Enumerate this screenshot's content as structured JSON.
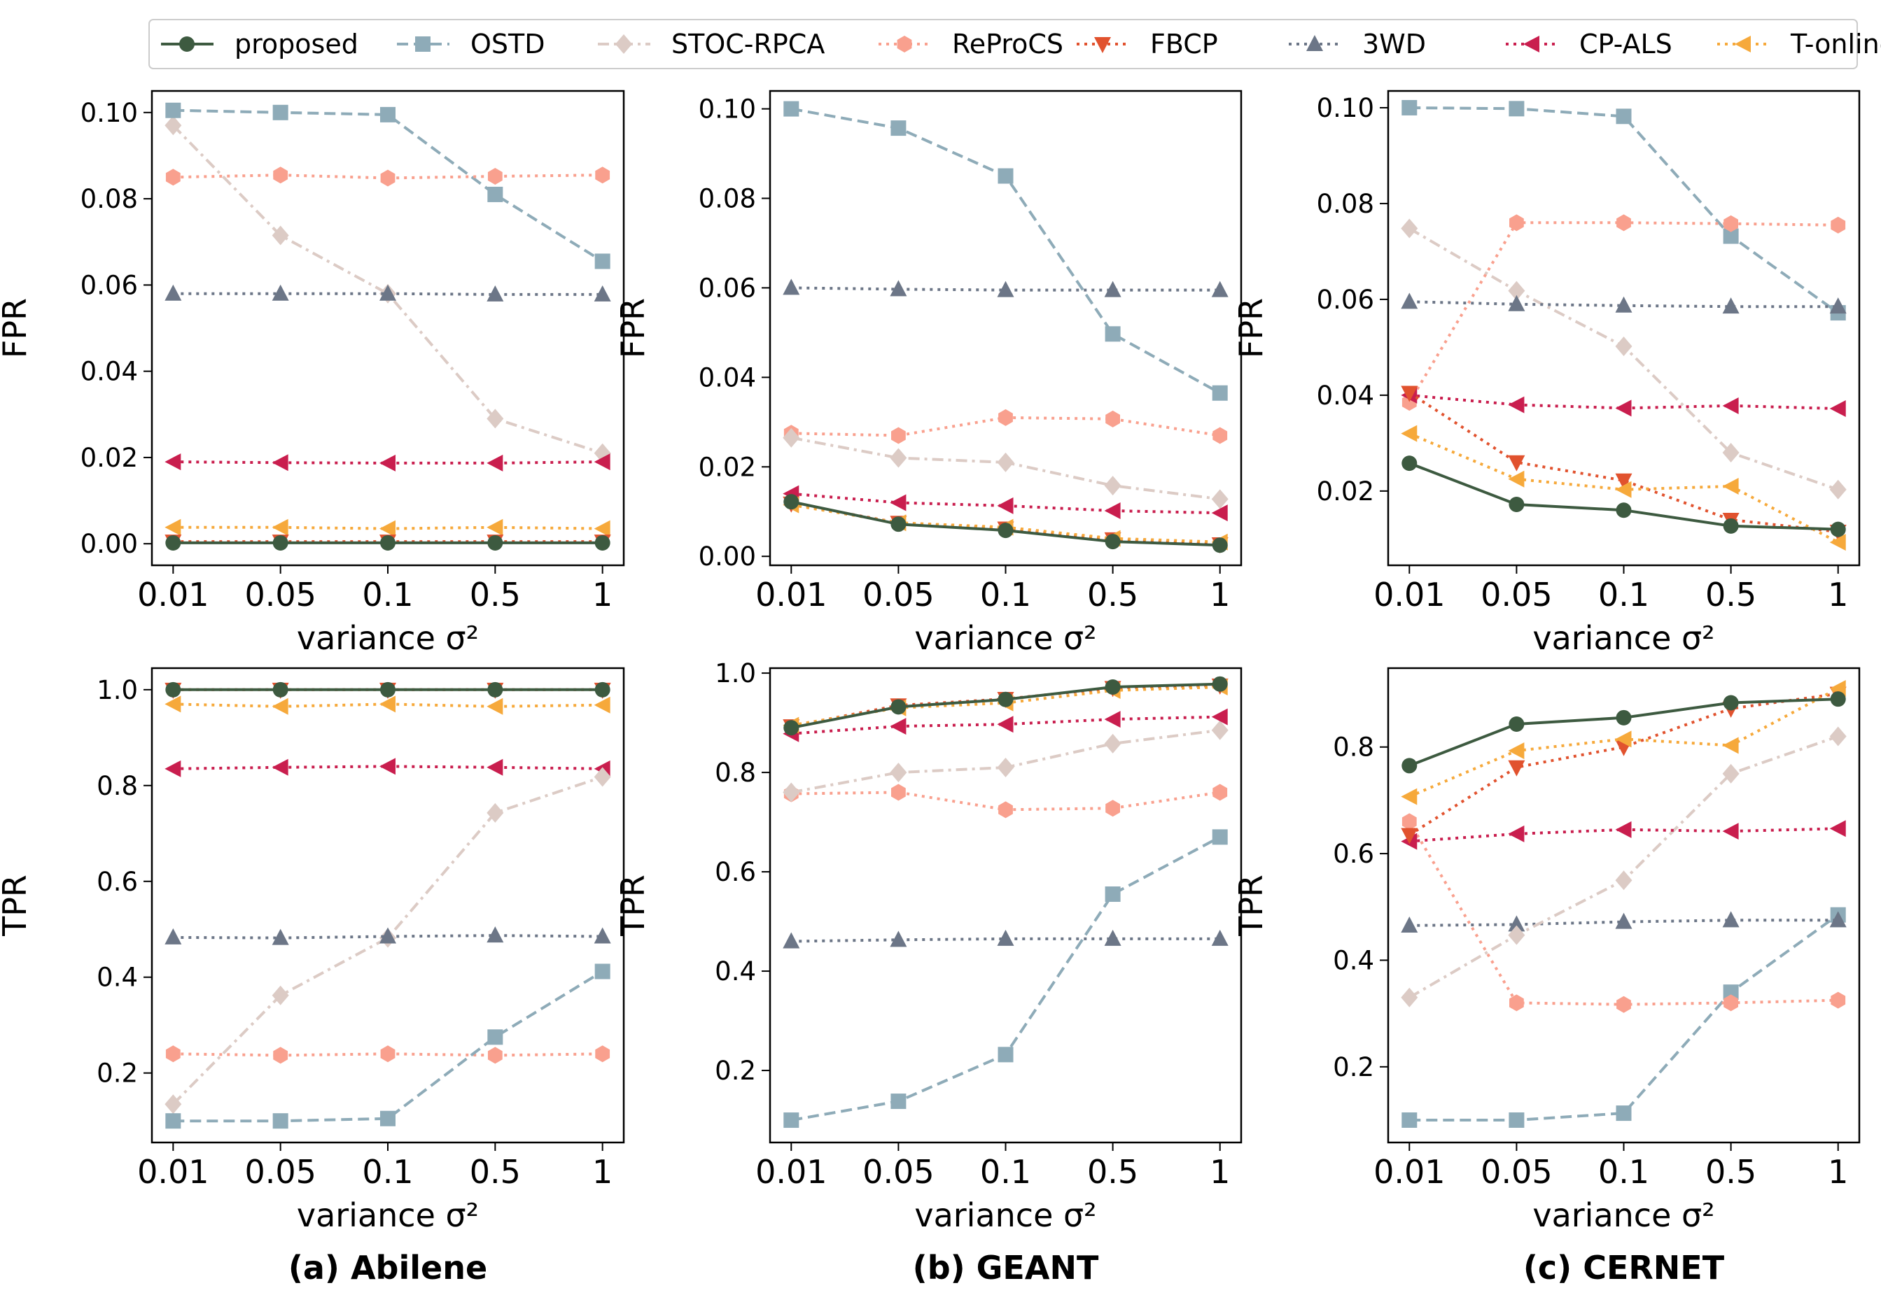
{
  "legend": [
    {
      "name": "proposed",
      "color": "#3d5a40",
      "dash": "solid",
      "marker": "circle"
    },
    {
      "name": "OSTD",
      "color": "#8eabb8",
      "dash": "dash",
      "marker": "square"
    },
    {
      "name": "STOC-RPCA",
      "color": "#dccbc5",
      "dash": "dashdot",
      "marker": "diamond"
    },
    {
      "name": "ReProCS",
      "color": "#f9a08e",
      "dash": "dot",
      "marker": "hexagon"
    },
    {
      "name": "FBCP",
      "color": "#e1522e",
      "dash": "dot",
      "marker": "triangle-down"
    },
    {
      "name": "3WD",
      "color": "#6c7687",
      "dash": "dot",
      "marker": "triangle-up"
    },
    {
      "name": "CP-ALS",
      "color": "#c91e4e",
      "dash": "dot",
      "marker": "triangle-left"
    },
    {
      "name": "T-online",
      "color": "#f6a93b",
      "dash": "dot",
      "marker": "triangle-left"
    }
  ],
  "titles": [
    "(a) Abilene",
    "(b) GEANT",
    "(c) CERNET"
  ],
  "chart_data": [
    {
      "type": "line",
      "dataset": "Abilene",
      "metric": "FPR",
      "xlabel": "variance σ²",
      "ylabel": "FPR",
      "categories": [
        "0.01",
        "0.05",
        "0.1",
        "0.5",
        "1"
      ],
      "ylim": [
        -0.005,
        0.105
      ],
      "yticks": [
        0.0,
        0.02,
        0.04,
        0.06,
        0.08,
        0.1
      ],
      "yticklabels": [
        "0.00",
        "0.02",
        "0.04",
        "0.06",
        "0.08",
        "0.10"
      ],
      "series": [
        {
          "name": "STOC-RPCA",
          "values": [
            0.097,
            0.0715,
            0.058,
            0.029,
            0.021
          ]
        },
        {
          "name": "OSTD",
          "values": [
            0.1005,
            0.1,
            0.0995,
            0.081,
            0.0655
          ]
        },
        {
          "name": "ReProCS",
          "values": [
            0.085,
            0.0855,
            0.0848,
            0.0852,
            0.0855
          ]
        },
        {
          "name": "3WD",
          "values": [
            0.058,
            0.058,
            0.058,
            0.0578,
            0.0578
          ]
        },
        {
          "name": "CP-ALS",
          "values": [
            0.019,
            0.0188,
            0.0187,
            0.0187,
            0.019
          ]
        },
        {
          "name": "T-online",
          "values": [
            0.0038,
            0.0038,
            0.0035,
            0.0038,
            0.0035
          ]
        },
        {
          "name": "FBCP",
          "values": [
            0.0005,
            0.0005,
            0.0005,
            0.0005,
            0.0005
          ]
        },
        {
          "name": "proposed",
          "values": [
            0.0002,
            0.0002,
            0.0002,
            0.0002,
            0.0002
          ]
        }
      ]
    },
    {
      "type": "line",
      "dataset": "GEANT",
      "metric": "FPR",
      "xlabel": "variance σ²",
      "ylabel": "FPR",
      "categories": [
        "0.01",
        "0.05",
        "0.1",
        "0.5",
        "1"
      ],
      "ylim": [
        -0.002,
        0.104
      ],
      "yticks": [
        0.0,
        0.02,
        0.04,
        0.06,
        0.08,
        0.1
      ],
      "yticklabels": [
        "0.00",
        "0.02",
        "0.04",
        "0.06",
        "0.08",
        "0.10"
      ],
      "series": [
        {
          "name": "OSTD",
          "values": [
            0.1,
            0.0957,
            0.085,
            0.0497,
            0.0365
          ]
        },
        {
          "name": "3WD",
          "values": [
            0.06,
            0.0597,
            0.0595,
            0.0595,
            0.0595
          ]
        },
        {
          "name": "ReProCS",
          "values": [
            0.0275,
            0.027,
            0.031,
            0.0307,
            0.027
          ]
        },
        {
          "name": "STOC-RPCA",
          "values": [
            0.0265,
            0.022,
            0.021,
            0.0158,
            0.0128
          ]
        },
        {
          "name": "CP-ALS",
          "values": [
            0.014,
            0.012,
            0.0113,
            0.0102,
            0.0097
          ]
        },
        {
          "name": "FBCP",
          "values": [
            0.0118,
            0.0075,
            0.0062,
            0.0038,
            0.0027
          ]
        },
        {
          "name": "T-online",
          "values": [
            0.0115,
            0.0075,
            0.0065,
            0.004,
            0.0032
          ]
        },
        {
          "name": "proposed",
          "values": [
            0.0122,
            0.0072,
            0.0058,
            0.0033,
            0.0025
          ]
        }
      ]
    },
    {
      "type": "line",
      "dataset": "CERNET",
      "metric": "FPR",
      "xlabel": "variance σ²",
      "ylabel": "FPR",
      "categories": [
        "0.01",
        "0.05",
        "0.1",
        "0.5",
        "1"
      ],
      "ylim": [
        0.0045,
        0.1035
      ],
      "yticks": [
        0.02,
        0.04,
        0.06,
        0.08,
        0.1
      ],
      "yticklabels": [
        "0.02",
        "0.04",
        "0.06",
        "0.08",
        "0.10"
      ],
      "series": [
        {
          "name": "OSTD",
          "values": [
            0.1,
            0.0998,
            0.0982,
            0.0732,
            0.0572
          ]
        },
        {
          "name": "ReProCS",
          "values": [
            0.0385,
            0.076,
            0.076,
            0.0758,
            0.0755
          ]
        },
        {
          "name": "STOC-RPCA",
          "values": [
            0.0748,
            0.0618,
            0.0502,
            0.028,
            0.0203
          ]
        },
        {
          "name": "3WD",
          "values": [
            0.0595,
            0.059,
            0.0587,
            0.0585,
            0.0585
          ]
        },
        {
          "name": "CP-ALS",
          "values": [
            0.04,
            0.038,
            0.0373,
            0.0378,
            0.0372
          ]
        },
        {
          "name": "FBCP",
          "values": [
            0.0405,
            0.026,
            0.0222,
            0.014,
            0.0115
          ]
        },
        {
          "name": "T-online",
          "values": [
            0.032,
            0.0225,
            0.0203,
            0.021,
            0.0093
          ]
        },
        {
          "name": "proposed",
          "values": [
            0.0258,
            0.0172,
            0.016,
            0.0127,
            0.012
          ]
        }
      ]
    },
    {
      "type": "line",
      "dataset": "Abilene",
      "metric": "TPR",
      "xlabel": "variance σ²",
      "ylabel": "TPR",
      "categories": [
        "0.01",
        "0.05",
        "0.1",
        "0.5",
        "1"
      ],
      "ylim": [
        0.055,
        1.045
      ],
      "yticks": [
        0.2,
        0.4,
        0.6,
        0.8,
        1.0
      ],
      "yticklabels": [
        "0.2",
        "0.4",
        "0.6",
        "0.8",
        "1.0"
      ],
      "series": [
        {
          "name": "FBCP",
          "values": [
            1.0,
            1.0,
            1.0,
            1.0,
            1.0
          ]
        },
        {
          "name": "proposed",
          "values": [
            1.0,
            1.0,
            1.0,
            1.0,
            1.0
          ]
        },
        {
          "name": "T-online",
          "values": [
            0.97,
            0.965,
            0.97,
            0.965,
            0.968
          ]
        },
        {
          "name": "CP-ALS",
          "values": [
            0.835,
            0.838,
            0.84,
            0.838,
            0.835
          ]
        },
        {
          "name": "STOC-RPCA",
          "values": [
            0.135,
            0.362,
            0.482,
            0.743,
            0.818
          ]
        },
        {
          "name": "3WD",
          "values": [
            0.483,
            0.482,
            0.485,
            0.487,
            0.485
          ]
        },
        {
          "name": "ReProCS",
          "values": [
            0.24,
            0.237,
            0.24,
            0.237,
            0.24
          ]
        },
        {
          "name": "OSTD",
          "values": [
            0.1,
            0.1,
            0.105,
            0.275,
            0.412
          ]
        }
      ]
    },
    {
      "type": "line",
      "dataset": "GEANT",
      "metric": "TPR",
      "xlabel": "variance σ²",
      "ylabel": "TPR",
      "categories": [
        "0.01",
        "0.05",
        "0.1",
        "0.5",
        "1"
      ],
      "ylim": [
        0.055,
        1.01
      ],
      "yticks": [
        0.2,
        0.4,
        0.6,
        0.8,
        1.0
      ],
      "yticklabels": [
        "0.2",
        "0.4",
        "0.6",
        "0.8",
        "1.0"
      ],
      "series": [
        {
          "name": "OSTD",
          "values": [
            0.1,
            0.138,
            0.232,
            0.555,
            0.67
          ]
        },
        {
          "name": "3WD",
          "values": [
            0.46,
            0.463,
            0.465,
            0.465,
            0.465
          ]
        },
        {
          "name": "ReProCS",
          "values": [
            0.757,
            0.76,
            0.725,
            0.728,
            0.76
          ]
        },
        {
          "name": "STOC-RPCA",
          "values": [
            0.76,
            0.8,
            0.81,
            0.858,
            0.885
          ]
        },
        {
          "name": "CP-ALS",
          "values": [
            0.878,
            0.893,
            0.897,
            0.907,
            0.912
          ]
        },
        {
          "name": "FBCP",
          "values": [
            0.893,
            0.935,
            0.948,
            0.97,
            0.975
          ]
        },
        {
          "name": "T-online",
          "values": [
            0.895,
            0.93,
            0.94,
            0.965,
            0.972
          ]
        },
        {
          "name": "proposed",
          "values": [
            0.89,
            0.932,
            0.947,
            0.972,
            0.978
          ]
        }
      ]
    },
    {
      "type": "line",
      "dataset": "CERNET",
      "metric": "TPR",
      "xlabel": "variance σ²",
      "ylabel": "TPR",
      "categories": [
        "0.01",
        "0.05",
        "0.1",
        "0.5",
        "1"
      ],
      "ylim": [
        0.058,
        0.948
      ],
      "yticks": [
        0.2,
        0.4,
        0.6,
        0.8
      ],
      "yticklabels": [
        "0.2",
        "0.4",
        "0.6",
        "0.8"
      ],
      "series": [
        {
          "name": "OSTD",
          "values": [
            0.1,
            0.1,
            0.113,
            0.34,
            0.485
          ]
        },
        {
          "name": "3WD",
          "values": [
            0.465,
            0.467,
            0.472,
            0.475,
            0.475
          ]
        },
        {
          "name": "ReProCS",
          "values": [
            0.66,
            0.32,
            0.317,
            0.32,
            0.325
          ]
        },
        {
          "name": "STOC-RPCA",
          "values": [
            0.33,
            0.447,
            0.55,
            0.75,
            0.82
          ]
        },
        {
          "name": "CP-ALS",
          "values": [
            0.623,
            0.637,
            0.645,
            0.642,
            0.647
          ]
        },
        {
          "name": "FBCP",
          "values": [
            0.635,
            0.762,
            0.8,
            0.872,
            0.9
          ]
        },
        {
          "name": "T-online",
          "values": [
            0.707,
            0.793,
            0.815,
            0.803,
            0.91
          ]
        },
        {
          "name": "proposed",
          "values": [
            0.765,
            0.843,
            0.855,
            0.883,
            0.89
          ]
        }
      ]
    }
  ]
}
